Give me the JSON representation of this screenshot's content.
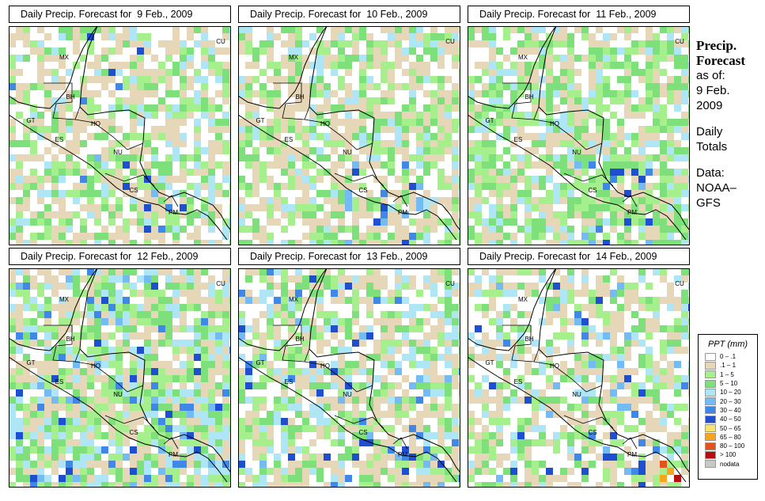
{
  "panels": [
    {
      "title": "Daily Precip. Forecast for  9 Feb., 2009"
    },
    {
      "title": "Daily Precip. Forecast for  10 Feb., 2009"
    },
    {
      "title": "Daily Precip. Forecast for  11 Feb., 2009"
    },
    {
      "title": "Daily Precip. Forecast for  12 Feb., 2009"
    },
    {
      "title": "Daily Precip. Forecast for  13 Feb., 2009"
    },
    {
      "title": "Daily Precip. Forecast for  14 Feb., 2009"
    }
  ],
  "map_labels": [
    "MX",
    "CU",
    "BH",
    "GT",
    "HO",
    "ES",
    "NU",
    "CS",
    "PM"
  ],
  "side": {
    "heading1": "Precip.",
    "heading2": "Forecast",
    "asof1": "as of:",
    "asof2": "9 Feb.",
    "asof3": "2009",
    "totals1": "Daily",
    "totals2": "Totals",
    "data1": "Data:",
    "data2": "NOAA–",
    "data3": "GFS"
  },
  "legend": {
    "title": "PPT (mm)",
    "classes": [
      {
        "label": "0 – .1",
        "color": "#ffffff"
      },
      {
        "label": ".1 – 1",
        "color": "#e6d7b9"
      },
      {
        "label": "1 – 5",
        "color": "#a5ef8c"
      },
      {
        "label": "5 – 10",
        "color": "#7de07a"
      },
      {
        "label": "10 – 20",
        "color": "#aee6f5"
      },
      {
        "label": "20 – 30",
        "color": "#73bbf2"
      },
      {
        "label": "30 – 40",
        "color": "#3f88e8"
      },
      {
        "label": "40 – 50",
        "color": "#1f4fd1"
      },
      {
        "label": "50 – 65",
        "color": "#fae36b"
      },
      {
        "label": "65 – 80",
        "color": "#f8a51c"
      },
      {
        "label": "80 – 100",
        "color": "#e4521b"
      },
      {
        "label": "> 100",
        "color": "#b50f0f"
      },
      {
        "label": "nodata",
        "color": "#c8c8c8"
      }
    ]
  }
}
